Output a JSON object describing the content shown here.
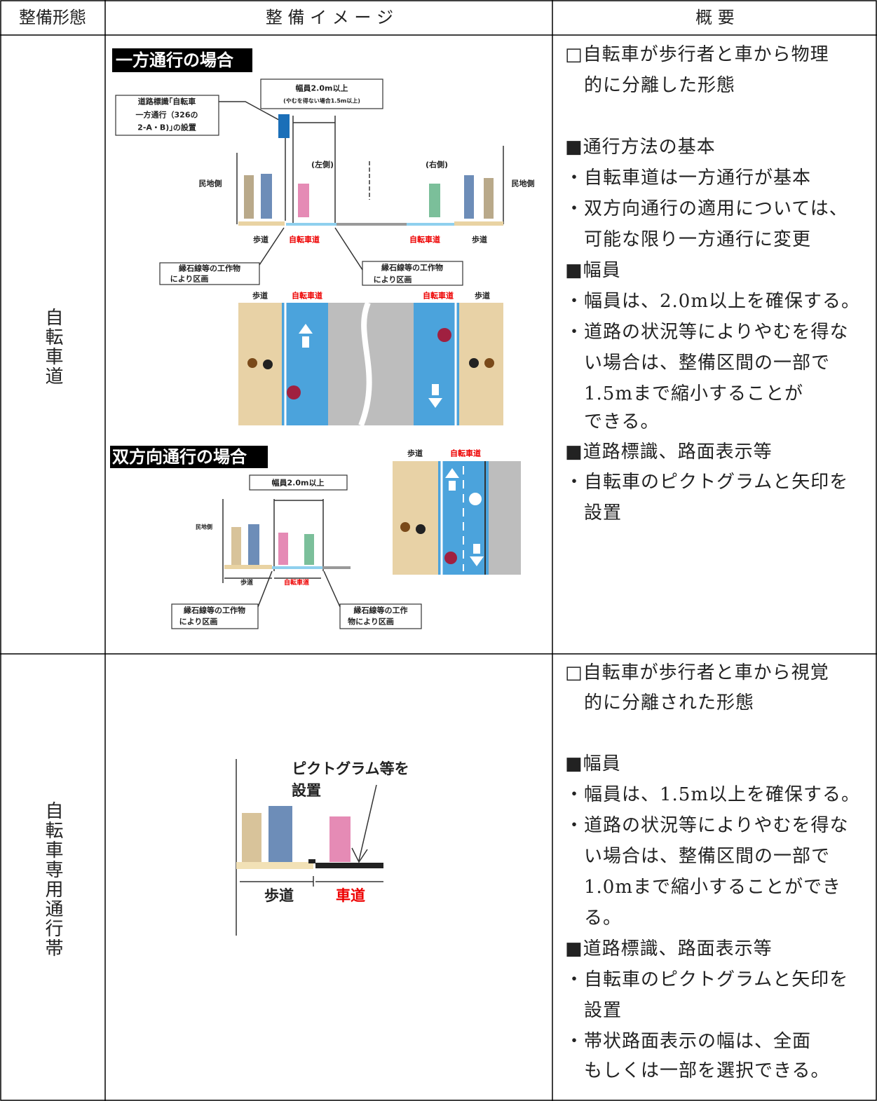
{
  "table": {
    "header": {
      "form": "整備形態",
      "image": "整 備 イ メ ー ジ",
      "summary": "概 要"
    },
    "rows": [
      {
        "form": "自転車道",
        "image": {
          "one_way_title": "一方通行の場合",
          "sign_note": [
            "道路標識｢自転車",
            "一方通行（326の",
            "2-A・B)｣の設置"
          ],
          "width": "幅員2.0m以上",
          "width_note": "(やむを得ない場合1.5m以上)",
          "left": "(左側)",
          "right": "(右側)",
          "private_side": "民地側",
          "sidewalk": "歩道",
          "bike_lane": "自転車道",
          "curb_note": [
            "縁石線等の工作物",
            "により区画"
          ],
          "two_way_title": "双方向通行の場合",
          "curb_note_2": [
            "縁石線等の工作",
            "物により区画"
          ]
        },
        "summary": [
          "□自転車が歩行者と車から物理",
          "的に分離した形態",
          "■通行方法の基本",
          "・自転車道は一方通行が基本",
          "・双方向通行の適用については、",
          "可能な限り一方通行に変更",
          "■幅員",
          "・幅員は、2.0m以上を確保する。",
          "・道路の状況等によりやむを得な",
          "い場合は、整備区間の一部で",
          "1.5mまで縮小することが",
          "できる。",
          "■道路標識、路面表示等",
          "・自転車のピクトグラムと矢印を",
          "設置"
        ]
      },
      {
        "form": "自転車専用通行帯",
        "image": {
          "pictogram_note": [
            "ピクトグラム等を",
            "設置"
          ],
          "sidewalk": "歩道",
          "roadway": "車道"
        },
        "summary": [
          "□自転車が歩行者と車から視覚",
          "的に分離された形態",
          "■幅員",
          "・幅員は、1.5m以上を確保する。",
          "・道路の状況等によりやむを得な",
          "い場合は、整備区間の一部で",
          "1.0mまで縮小することができ",
          "る。",
          "■道路標識、路面表示等",
          "・自転車のピクトグラムと矢印を",
          "設置",
          "・帯状路面表示の幅は、全面",
          "もしくは一部を選択できる。"
        ]
      }
    ]
  }
}
